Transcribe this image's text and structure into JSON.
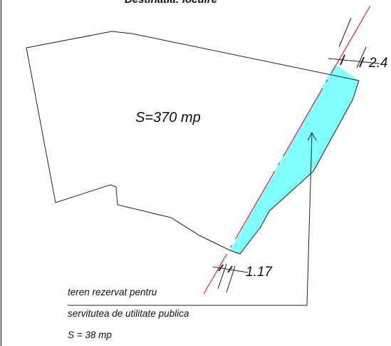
{
  "drawing": {
    "title": "Destinatia: locuire",
    "area_label": "S=370 mp",
    "dimension_top": "2.4",
    "dimension_bottom": "1.17",
    "note": {
      "line1": "teren rezervat pentru",
      "line2": "servitutea de utilitate publica",
      "line3": "S = 38 mp"
    },
    "colors": {
      "easement_fill": "#80ffff",
      "alignment_line": "#e8242c",
      "outline": "#222222"
    }
  }
}
